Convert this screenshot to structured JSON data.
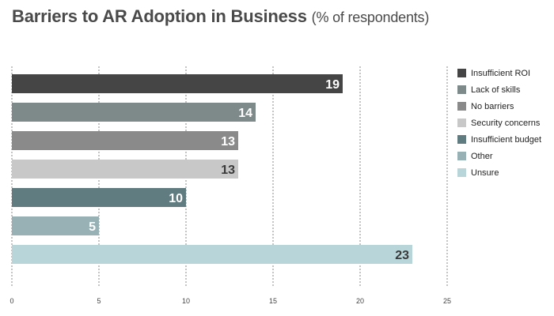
{
  "title": "Barriers to AR Adoption in Business",
  "subtitle": "(% of respondents)",
  "chart_data": {
    "type": "bar",
    "orientation": "horizontal",
    "title": "Barriers to AR Adoption in Business",
    "subtitle": "(% of respondents)",
    "xlabel": "",
    "ylabel": "",
    "xlim": [
      0,
      25
    ],
    "x_ticks": [
      0,
      5,
      10,
      15,
      20,
      25
    ],
    "grid": "vertical dotted",
    "legend_position": "right",
    "data_labels": true,
    "series": [
      {
        "name": "Insufficient ROI",
        "value": 19,
        "color": "#454545",
        "label_color": "#ffffff"
      },
      {
        "name": "Lack of skills",
        "value": 14,
        "color": "#7e8a8a",
        "label_color": "#ffffff"
      },
      {
        "name": "No barriers",
        "value": 13,
        "color": "#8a8a8a",
        "label_color": "#ffffff"
      },
      {
        "name": "Security concerns",
        "value": 13,
        "color": "#c8c8c8",
        "label_color": "#3a3a3a"
      },
      {
        "name": "Insufficient budget",
        "value": 10,
        "color": "#607c80",
        "label_color": "#ffffff"
      },
      {
        "name": "Other",
        "value": 5,
        "color": "#97b1b5",
        "label_color": "#ffffff"
      },
      {
        "name": "Unsure",
        "value": 23,
        "color": "#b8d5da",
        "label_color": "#3a3a3a"
      }
    ]
  }
}
